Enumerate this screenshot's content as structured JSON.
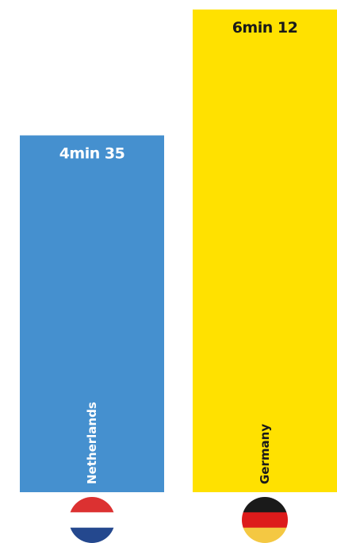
{
  "chart_data": {
    "type": "bar",
    "categories": [
      "Netherlands",
      "Germany"
    ],
    "values": [
      275,
      372
    ],
    "value_units": "seconds",
    "value_labels": [
      "4min 35",
      "6min 12"
    ],
    "bar_colors": [
      "#4590cf",
      "#ffe100"
    ],
    "value_label_colors": [
      "#ffffff",
      "#1a1a1a"
    ],
    "category_label_colors": [
      "#ffffff",
      "#1a1a1a"
    ],
    "flags": [
      {
        "name": "netherlands-flag-icon",
        "stripes": [
          "#dc3131",
          "#ffffff",
          "#24488e"
        ]
      },
      {
        "name": "germany-flag-icon",
        "stripes": [
          "#1a1a1a",
          "#dd1b1b",
          "#f4c842"
        ]
      }
    ],
    "grid": false,
    "legend": "none",
    "ylim": [
      0,
      372
    ]
  }
}
